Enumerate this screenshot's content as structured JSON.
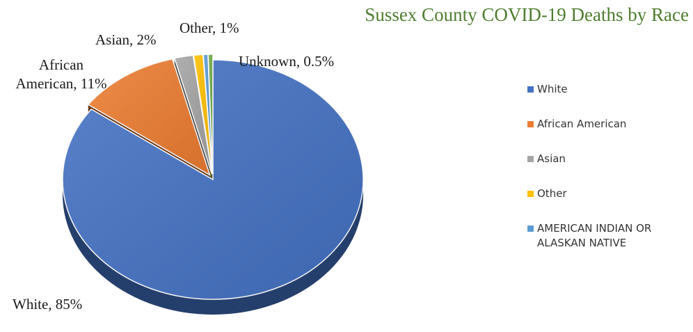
{
  "chart_data": {
    "type": "pie",
    "title": "Sussex County COVID-19 Deaths by Race",
    "slices": [
      {
        "name": "White",
        "value": 85,
        "label": "White, 85%",
        "color": "#4472c4"
      },
      {
        "name": "African American",
        "value": 11,
        "label": "African\nAmerican, 11%",
        "color": "#ed7d31"
      },
      {
        "name": "Asian",
        "value": 2,
        "label": "Asian, 2%",
        "color": "#a5a5a5"
      },
      {
        "name": "Other",
        "value": 1,
        "label": "Other, 1%",
        "color": "#ffc000"
      },
      {
        "name": "AMERICAN INDIAN OR ALASKAN NATIVE",
        "value": 0.5,
        "label": "",
        "color": "#5b9bd5"
      },
      {
        "name": "Unknown",
        "value": 0.5,
        "label": "Unknown, 0.5%",
        "color": "#70ad47"
      }
    ],
    "legend": {
      "placement": "right",
      "entries": [
        "White",
        "African American",
        "Asian",
        "Other",
        "AMERICAN INDIAN OR ALASKAN NATIVE"
      ]
    },
    "exploded": true
  }
}
